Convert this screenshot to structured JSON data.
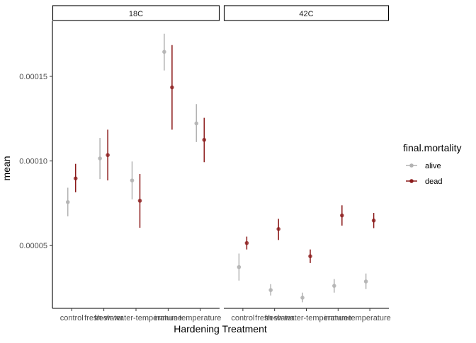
{
  "chart_data": {
    "type": "scatter",
    "subtype": "point-with-error-bars",
    "xlabel": "Hardening Treatment",
    "ylabel": "mean",
    "categories": [
      "control",
      "fresh-water",
      "fresh-water-temperature",
      "immune",
      "temperature"
    ],
    "tick_labels": [
      "control",
      "fresh-water",
      "fresh-water-temperature",
      "immune",
      "temperature"
    ],
    "ylim": [
      1.29e-05,
      0.0001826
    ],
    "yticks": [
      5e-05,
      0.0001,
      0.00015
    ],
    "ytick_labels": [
      "0.00005",
      "0.00010",
      "0.00015"
    ],
    "grid": false,
    "facets": [
      {
        "label": "18C",
        "series": [
          {
            "name": "alive",
            "color": "#b3b3b3",
            "mean": [
              7.57e-05,
              0.0001015,
              8.85e-05,
              0.0001645,
              0.0001222
            ],
            "lower": [
              6.73e-05,
              8.93e-05,
              7.73e-05,
              0.0001535,
              0.0001112
            ],
            "upper": [
              8.42e-05,
              0.0001136,
              9.97e-05,
              0.0001752,
              0.0001336
            ]
          },
          {
            "name": "dead",
            "color": "#8b1a1a",
            "mean": [
              8.97e-05,
              0.0001035,
              7.65e-05,
              0.0001435,
              0.0001125
            ],
            "lower": [
              8.15e-05,
              8.85e-05,
              6.05e-05,
              0.0001185,
              9.93e-05
            ],
            "upper": [
              9.83e-05,
              0.0001185,
              9.23e-05,
              0.0001685,
              0.0001255
            ]
          }
        ]
      },
      {
        "label": "42C",
        "series": [
          {
            "name": "alive",
            "color": "#b3b3b3",
            "mean": [
              3.73e-05,
              2.37e-05,
              1.92e-05,
              2.62e-05,
              2.88e-05
            ],
            "lower": [
              2.93e-05,
              2.05e-05,
              1.65e-05,
              2.22e-05,
              2.43e-05
            ],
            "upper": [
              4.53e-05,
              2.72e-05,
              2.22e-05,
              3.02e-05,
              3.35e-05
            ]
          },
          {
            "name": "dead",
            "color": "#8b1a1a",
            "mean": [
              5.15e-05,
              5.98e-05,
              4.37e-05,
              6.78e-05,
              6.48e-05
            ],
            "lower": [
              4.77e-05,
              5.33e-05,
              3.97e-05,
              6.18e-05,
              6.03e-05
            ],
            "upper": [
              5.53e-05,
              6.58e-05,
              4.77e-05,
              7.38e-05,
              6.93e-05
            ]
          }
        ]
      }
    ],
    "legend": {
      "title": "final.mortality",
      "placement": "right",
      "entries": [
        {
          "label": "alive",
          "color": "#b3b3b3"
        },
        {
          "label": "dead",
          "color": "#8b1a1a"
        }
      ]
    }
  }
}
